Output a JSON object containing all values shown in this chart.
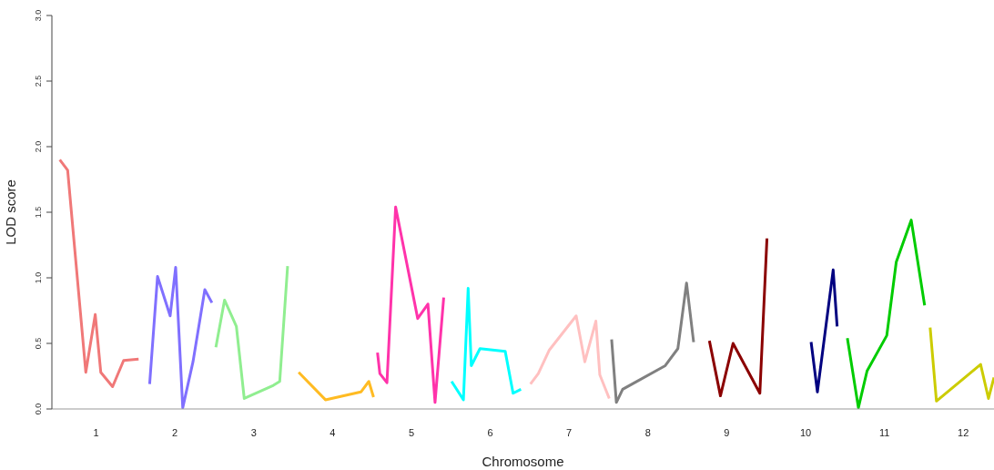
{
  "chart_data": {
    "type": "line",
    "xlabel": "Chromosome",
    "ylabel": "LOD score",
    "ylim": [
      0,
      3
    ],
    "yticks": [
      {
        "value": 0,
        "label": "0.0"
      },
      {
        "value": 0.5,
        "label": "0.5"
      },
      {
        "value": 1,
        "label": "1.0"
      },
      {
        "value": 1.5,
        "label": "1.5"
      },
      {
        "value": 2,
        "label": "2.0"
      },
      {
        "value": 2.5,
        "label": "2.5"
      },
      {
        "value": 3,
        "label": "3.0"
      }
    ],
    "xlim": [
      0.44,
      12.39
    ],
    "xticks": [
      1,
      2,
      3,
      4,
      5,
      6,
      7,
      8,
      9,
      10,
      11,
      12
    ],
    "grid": false,
    "legend": false,
    "marker": "none",
    "line_style": "solid",
    "series": [
      {
        "color": "#f07878",
        "x": [
          0.54,
          0.64,
          0.87,
          0.99,
          1.06,
          1.21,
          1.35,
          1.54
        ],
        "values": [
          1.9,
          1.82,
          0.28,
          0.72,
          0.28,
          0.17,
          0.37,
          0.38
        ]
      },
      {
        "color": "#8070ff",
        "x": [
          1.68,
          1.78,
          1.94,
          2.01,
          2.1,
          2.23,
          2.38,
          2.47
        ],
        "values": [
          0.19,
          1.01,
          0.71,
          1.08,
          0.01,
          0.36,
          0.91,
          0.81
        ]
      },
      {
        "color": "#90ee90",
        "x": [
          2.52,
          2.63,
          2.78,
          2.88,
          3.25,
          3.33,
          3.43
        ],
        "values": [
          0.47,
          0.83,
          0.63,
          0.08,
          0.18,
          0.21,
          1.09
        ]
      },
      {
        "color": "#ffbb22",
        "x": [
          3.57,
          3.91,
          4.36,
          4.46,
          4.52
        ],
        "values": [
          0.28,
          0.07,
          0.13,
          0.21,
          0.09
        ]
      },
      {
        "color": "#ff33aa",
        "x": [
          4.57,
          4.6,
          4.69,
          4.8,
          5.08,
          5.21,
          5.3,
          5.41
        ],
        "values": [
          0.43,
          0.27,
          0.2,
          1.54,
          0.69,
          0.8,
          0.05,
          0.85
        ]
      },
      {
        "color": "#00ffff",
        "x": [
          5.51,
          5.66,
          5.72,
          5.76,
          5.87,
          6.19,
          6.29,
          6.39
        ],
        "values": [
          0.21,
          0.07,
          0.92,
          0.33,
          0.46,
          0.44,
          0.12,
          0.15
        ]
      },
      {
        "color": "#ffc0c0",
        "x": [
          6.51,
          6.61,
          6.75,
          7.09,
          7.2,
          7.34,
          7.39,
          7.51
        ],
        "values": [
          0.19,
          0.27,
          0.45,
          0.71,
          0.36,
          0.67,
          0.26,
          0.08
        ]
      },
      {
        "color": "#808080",
        "x": [
          7.54,
          7.6,
          7.68,
          7.8,
          8.22,
          8.38,
          8.49,
          8.58
        ],
        "values": [
          0.53,
          0.05,
          0.15,
          0.19,
          0.33,
          0.46,
          0.96,
          0.51
        ]
      },
      {
        "color": "#8b0000",
        "x": [
          8.78,
          8.92,
          9.08,
          9.42,
          9.51
        ],
        "values": [
          0.52,
          0.1,
          0.5,
          0.12,
          1.3
        ]
      },
      {
        "color": "#000080",
        "x": [
          10.07,
          10.15,
          10.35,
          10.4
        ],
        "values": [
          0.51,
          0.13,
          1.06,
          0.63
        ]
      },
      {
        "color": "#00cc00",
        "x": [
          10.53,
          10.67,
          10.78,
          11.03,
          11.15,
          11.34,
          11.51
        ],
        "values": [
          0.54,
          0.01,
          0.29,
          0.56,
          1.12,
          1.44,
          0.79
        ]
      },
      {
        "color": "#cccc00",
        "x": [
          11.58,
          11.66,
          12.22,
          12.32,
          12.39
        ],
        "values": [
          0.62,
          0.06,
          0.34,
          0.08,
          0.24
        ]
      }
    ]
  }
}
